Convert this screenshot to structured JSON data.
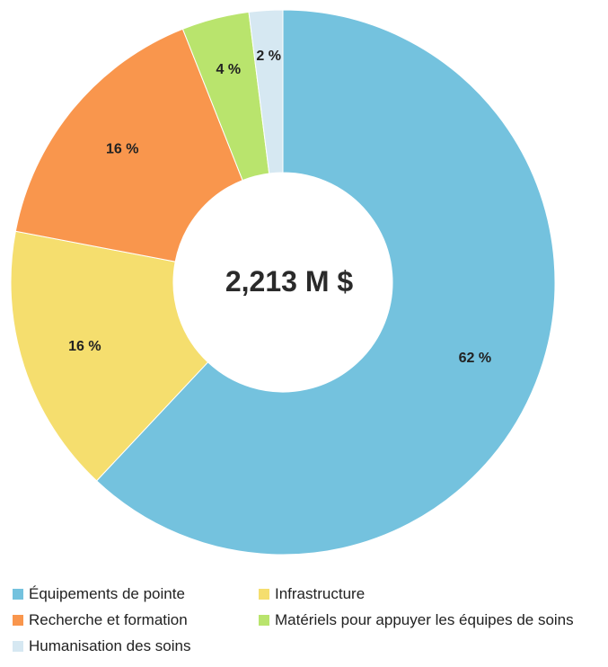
{
  "chart_data": {
    "type": "pie",
    "variant": "donut",
    "center_label": "2,213 M $",
    "categories": [
      "Équipements de pointe",
      "Infrastructure",
      "Recherche et formation",
      "Matériels pour appuyer les équipes de soins",
      "Humanisation des soins"
    ],
    "values": [
      62,
      16,
      16,
      4,
      2
    ],
    "value_labels": [
      "62 %",
      "16 %",
      "16 %",
      "4 %",
      "2 %"
    ],
    "colors": [
      "#74C2DE",
      "#F5DE6E",
      "#F9964D",
      "#B9E46D",
      "#D6E8F2"
    ],
    "legend": {
      "placement": "bottom",
      "entries": [
        {
          "label": "Équipements de pointe",
          "color": "#74C2DE"
        },
        {
          "label": "Infrastructure",
          "color": "#F5DE6E"
        },
        {
          "label": "Recherche et formation",
          "color": "#F9964D"
        },
        {
          "label": "Matériels pour appuyer les équipes de soins",
          "color": "#B9E46D"
        },
        {
          "label": "Humanisation des soins",
          "color": "#D6E8F2"
        }
      ]
    }
  }
}
